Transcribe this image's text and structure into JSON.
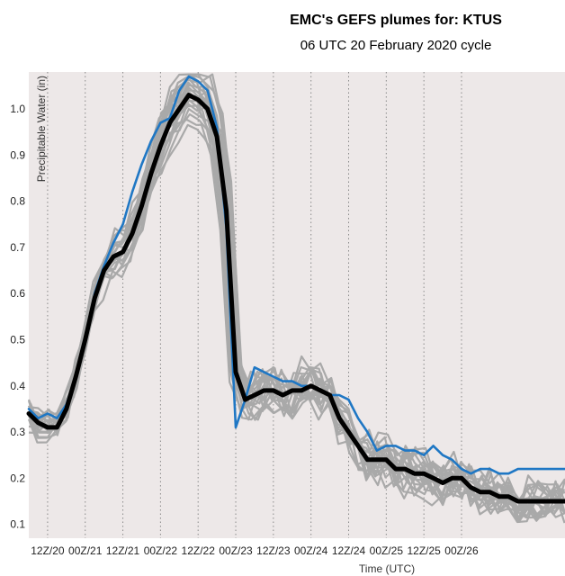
{
  "title": "EMC's GEFS plumes for: KTUS",
  "subtitle": "06 UTC 20 February 2020 cycle",
  "colors": {
    "plot_bg": "#ede8e8",
    "members": "#a9a9a9",
    "mean": "#000000",
    "control": "#1f77c4",
    "grid": "#8a8a8a"
  },
  "chart_data": {
    "type": "line",
    "title": "EMC's GEFS plumes for: KTUS",
    "subtitle": "06 UTC 20 February 2020 cycle",
    "xlabel": "Time (UTC)",
    "ylabel": "Precipitable Water (in)",
    "x_unit": "hours since 06Z/20",
    "xlim": [
      0,
      171
    ],
    "ylim": [
      0.07,
      1.08
    ],
    "grid": "vertical dotted at 00Z/12Z",
    "yticks": [
      "0.1",
      "0.2",
      "0.3",
      "0.4",
      "0.5",
      "0.6",
      "0.7",
      "0.8",
      "0.9",
      "1.0"
    ],
    "xticks": [
      {
        "label": "12Z/20",
        "hour": 6
      },
      {
        "label": "00Z/21",
        "hour": 18
      },
      {
        "label": "12Z/21",
        "hour": 30
      },
      {
        "label": "00Z/22",
        "hour": 42
      },
      {
        "label": "12Z/22",
        "hour": 54
      },
      {
        "label": "00Z/23",
        "hour": 66
      },
      {
        "label": "12Z/23",
        "hour": 78
      },
      {
        "label": "00Z/24",
        "hour": 90
      },
      {
        "label": "12Z/24",
        "hour": 102
      },
      {
        "label": "00Z/25",
        "hour": 114
      },
      {
        "label": "12Z/25",
        "hour": 126
      },
      {
        "label": "00Z/26",
        "hour": 138
      }
    ],
    "series": [
      {
        "name": "Ensemble mean",
        "x": [
          0,
          3,
          6,
          9,
          12,
          15,
          18,
          21,
          24,
          27,
          30,
          33,
          36,
          39,
          42,
          45,
          48,
          51,
          54,
          57,
          60,
          63,
          66,
          69,
          72,
          75,
          78,
          81,
          84,
          87,
          90,
          93,
          96,
          99,
          102,
          105,
          108,
          111,
          114,
          117,
          120,
          123,
          126,
          129,
          132,
          135,
          138,
          141,
          144,
          147,
          150,
          153,
          156,
          159,
          162,
          165,
          168,
          171
        ],
        "values": [
          0.34,
          0.32,
          0.31,
          0.31,
          0.35,
          0.42,
          0.5,
          0.59,
          0.65,
          0.68,
          0.69,
          0.73,
          0.79,
          0.86,
          0.92,
          0.97,
          1.0,
          1.03,
          1.02,
          1.0,
          0.94,
          0.78,
          0.43,
          0.37,
          0.38,
          0.39,
          0.39,
          0.38,
          0.39,
          0.39,
          0.4,
          0.39,
          0.38,
          0.33,
          0.3,
          0.27,
          0.24,
          0.24,
          0.24,
          0.22,
          0.22,
          0.21,
          0.21,
          0.2,
          0.19,
          0.2,
          0.2,
          0.18,
          0.17,
          0.17,
          0.16,
          0.16,
          0.15,
          0.15,
          0.15,
          0.15,
          0.15,
          0.15
        ]
      },
      {
        "name": "Control",
        "x": [
          0,
          3,
          6,
          9,
          12,
          15,
          18,
          21,
          24,
          27,
          30,
          33,
          36,
          39,
          42,
          45,
          48,
          51,
          54,
          57,
          60,
          63,
          66,
          69,
          72,
          75,
          78,
          81,
          84,
          87,
          90,
          93,
          96,
          99,
          102,
          105,
          108,
          111,
          114,
          117,
          120,
          123,
          126,
          129,
          132,
          135,
          138,
          141,
          144,
          147,
          150,
          153,
          156,
          159,
          162,
          165,
          168,
          171
        ],
        "values": [
          0.35,
          0.33,
          0.34,
          0.33,
          0.36,
          0.42,
          0.5,
          0.6,
          0.66,
          0.71,
          0.75,
          0.82,
          0.88,
          0.93,
          0.97,
          0.98,
          1.04,
          1.07,
          1.06,
          1.04,
          0.96,
          0.74,
          0.31,
          0.37,
          0.44,
          0.43,
          0.42,
          0.41,
          0.41,
          0.4,
          0.4,
          0.39,
          0.38,
          0.38,
          0.37,
          0.33,
          0.3,
          0.26,
          0.27,
          0.27,
          0.26,
          0.26,
          0.25,
          0.27,
          0.25,
          0.24,
          0.22,
          0.21,
          0.22,
          0.22,
          0.21,
          0.21,
          0.22,
          0.22,
          0.22,
          0.22,
          0.22,
          0.22
        ]
      }
    ]
  }
}
